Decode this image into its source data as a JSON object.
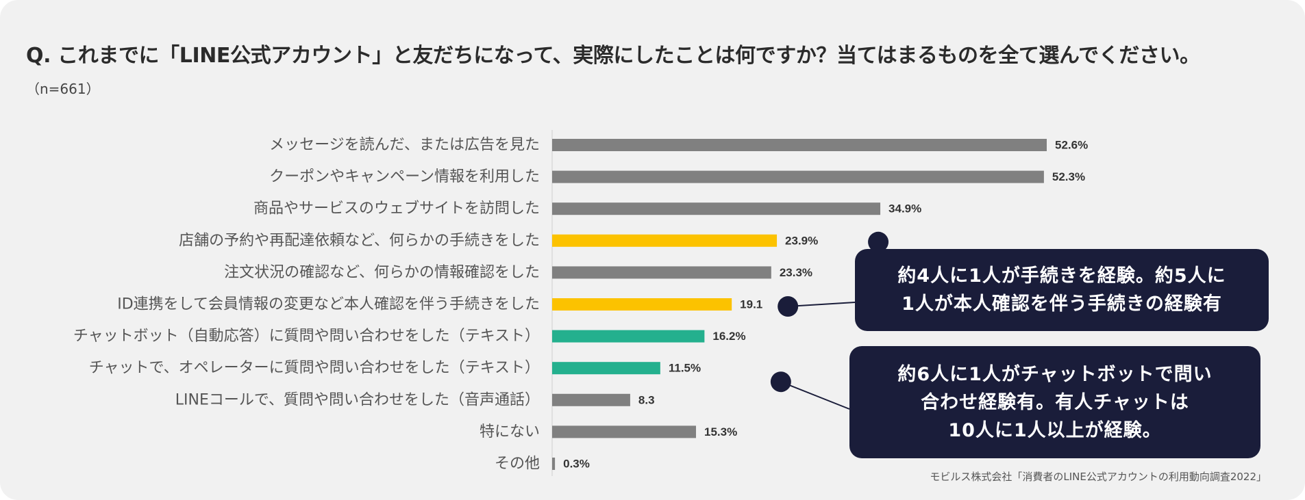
{
  "header": {
    "title": "Q. これまでに「LINE公式アカウント」と友だちになって、実際にしたことは何ですか？当てはまるものを全て選んでください。",
    "sample": "（n=661）"
  },
  "colors": {
    "gray": "#808080",
    "yellow": "#fcc200",
    "green": "#24b08e",
    "callout_bg": "#1a1d3a"
  },
  "chart_data": {
    "type": "bar",
    "orientation": "horizontal",
    "title": "Q. これまでに「LINE公式アカウント」と友だちになって、実際にしたことは何ですか？当てはまるものを全て選んでください。",
    "xlabel": "",
    "ylabel": "",
    "xlim": [
      0,
      52.6
    ],
    "grid": false,
    "categories": [
      "メッセージを読んだ、または広告を見た",
      "クーポンやキャンペーン情報を利用した",
      "商品やサービスのウェブサイトを訪問した",
      "店舗の予約や再配達依頼など、何らかの手続きをした",
      "注文状況の確認など、何らかの情報確認をした",
      "ID連携をして会員情報の変更など本人確認を伴う手続きをした",
      "チャットボット（自動応答）に質問や問い合わせをした（テキスト）",
      "チャットで、オペレーターに質問や問い合わせをした（テキスト）",
      "LINEコールで、質問や問い合わせをした（音声通話）",
      "特にない",
      "その他"
    ],
    "values": [
      52.6,
      52.3,
      34.9,
      23.9,
      23.3,
      19.1,
      16.2,
      11.5,
      8.3,
      15.3,
      0.3
    ],
    "value_labels": [
      "52.6%",
      "52.3%",
      "34.9%",
      "23.9%",
      "23.3%",
      "19.1",
      "16.2%",
      "11.5%",
      "8.3",
      "15.3%",
      "0.3%"
    ],
    "bar_colors": [
      "gray",
      "gray",
      "gray",
      "yellow",
      "gray",
      "yellow",
      "green",
      "green",
      "gray",
      "gray",
      "gray"
    ]
  },
  "callouts": [
    {
      "lines": [
        "約4人に1人が手続きを経験。約5人に",
        "1人が本人確認を伴う手続きの経験有"
      ],
      "targets": [
        3,
        5
      ]
    },
    {
      "lines": [
        "約6人に1人がチャットボットで問い",
        "合わせ経験有。有人チャットは",
        "10人に1人以上が経験。"
      ],
      "targets": [
        7
      ]
    }
  ],
  "source": "モビルス株式会社「消費者のLINE公式アカウントの利用動向調査2022」"
}
